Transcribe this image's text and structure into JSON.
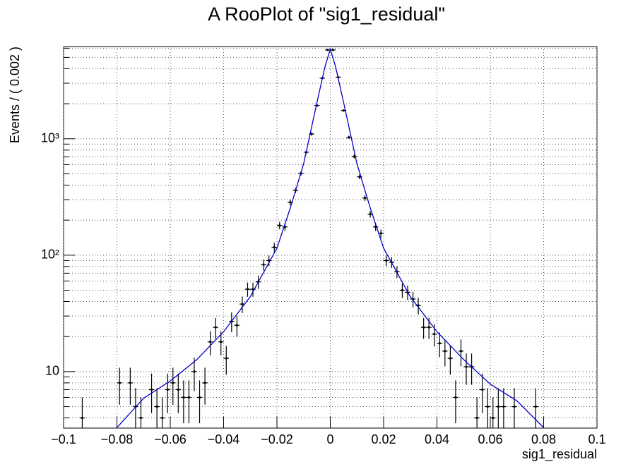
{
  "chart_data": {
    "type": "scatter",
    "title": "A RooPlot of \"sig1_residual\"",
    "x_label": "sig1_residual",
    "y_label": "Events / ( 0.002 )",
    "log_y": true,
    "grid": true,
    "xlim": [
      -0.1,
      0.1
    ],
    "ylim": [
      3.27,
      6200
    ],
    "xticks": [
      {
        "value": -0.1,
        "label": "−0.1"
      },
      {
        "value": -0.08,
        "label": "−0.08"
      },
      {
        "value": -0.06,
        "label": "−0.06"
      },
      {
        "value": -0.04,
        "label": "−0.04"
      },
      {
        "value": -0.02,
        "label": "−0.02"
      },
      0,
      0.02,
      0.04,
      0.06,
      0.08,
      0.1
    ],
    "yticks": [
      10,
      {
        "value": 100,
        "label": "10²"
      },
      {
        "value": 1000,
        "label": "10³"
      }
    ],
    "yminorticks": [
      4,
      5,
      6,
      7,
      8,
      9,
      20,
      30,
      40,
      50,
      60,
      70,
      80,
      90,
      200,
      300,
      400,
      500,
      600,
      700,
      800,
      900,
      2000,
      3000,
      4000,
      5000,
      6000
    ],
    "points": {
      "color": "#000000",
      "xerror": 0.001,
      "x": [
        -0.093,
        -0.079,
        -0.075,
        -0.073,
        -0.071,
        -0.067,
        -0.065,
        -0.063,
        -0.061,
        -0.059,
        -0.057,
        -0.055,
        -0.053,
        -0.051,
        -0.049,
        -0.047,
        -0.045,
        -0.043,
        -0.041,
        -0.039,
        -0.037,
        -0.035,
        -0.033,
        -0.031,
        -0.029,
        -0.027,
        -0.025,
        -0.023,
        -0.021,
        -0.019,
        -0.017,
        -0.015,
        -0.013,
        -0.011,
        -0.009,
        -0.007,
        -0.005,
        -0.003,
        -0.001,
        0.001,
        0.003,
        0.005,
        0.007,
        0.009,
        0.011,
        0.013,
        0.015,
        0.017,
        0.019,
        0.021,
        0.023,
        0.025,
        0.027,
        0.029,
        0.031,
        0.033,
        0.035,
        0.037,
        0.039,
        0.041,
        0.043,
        0.045,
        0.047,
        0.049,
        0.051,
        0.053,
        0.055,
        0.057,
        0.059,
        0.061,
        0.063,
        0.065,
        0.069,
        0.077
      ],
      "values": [
        4,
        8,
        8,
        5,
        4,
        7,
        5,
        4,
        7,
        8,
        7,
        6,
        6,
        10,
        6,
        8,
        18,
        24,
        18,
        13,
        27,
        25,
        38,
        51,
        51,
        59,
        83,
        90,
        117,
        180,
        175,
        285,
        361,
        505,
        767,
        1100,
        1930,
        3320,
        5800,
        5800,
        3380,
        1750,
        1030,
        705,
        471,
        310,
        225,
        175,
        154,
        90,
        87,
        72,
        50,
        48,
        42,
        37,
        24,
        24,
        21,
        17.5,
        15,
        13,
        6,
        15,
        11,
        11,
        4,
        7,
        5,
        4,
        5,
        5,
        5,
        5
      ],
      "errors": [
        2,
        2.8,
        2.8,
        2.2,
        2,
        2.6,
        2.2,
        2,
        2.6,
        2.8,
        2.6,
        2.4,
        2.4,
        3.2,
        2.4,
        2.8,
        4.2,
        4.9,
        4.2,
        3.6,
        5.2,
        5,
        6.2,
        7.1,
        7.1,
        7.7,
        9.1,
        9.5,
        10.8,
        13.4,
        13.2,
        16.9,
        19,
        22.5,
        27.7,
        33.2,
        43.9,
        57.6,
        76.2,
        76.2,
        58.1,
        41.8,
        32.1,
        26.6,
        21.7,
        17.6,
        15,
        13.2,
        12.4,
        9.5,
        9.3,
        8.5,
        7.1,
        6.9,
        6.5,
        6.1,
        4.9,
        4.9,
        4.6,
        4.2,
        3.9,
        3.6,
        2.4,
        3.9,
        3.3,
        3.3,
        2,
        2.6,
        2.2,
        2,
        2.2,
        2.2,
        2.2,
        2.2
      ]
    },
    "curve": {
      "color": "#0000cc",
      "x": [
        -0.085,
        -0.08,
        -0.07,
        -0.06,
        -0.05,
        -0.04,
        -0.03,
        -0.02,
        -0.015,
        -0.01,
        -0.005,
        -0.002,
        0,
        0.002,
        0.005,
        0.01,
        0.015,
        0.02,
        0.03,
        0.04,
        0.05,
        0.06,
        0.07,
        0.08,
        0.085
      ],
      "values": [
        2.6,
        3.3,
        5.9,
        8.3,
        12.7,
        22,
        44,
        115,
        254,
        610,
        2050,
        4150,
        5900,
        4150,
        2050,
        610,
        254,
        115,
        44,
        22,
        12.7,
        7.8,
        5.6,
        3.3,
        2.6
      ]
    }
  }
}
